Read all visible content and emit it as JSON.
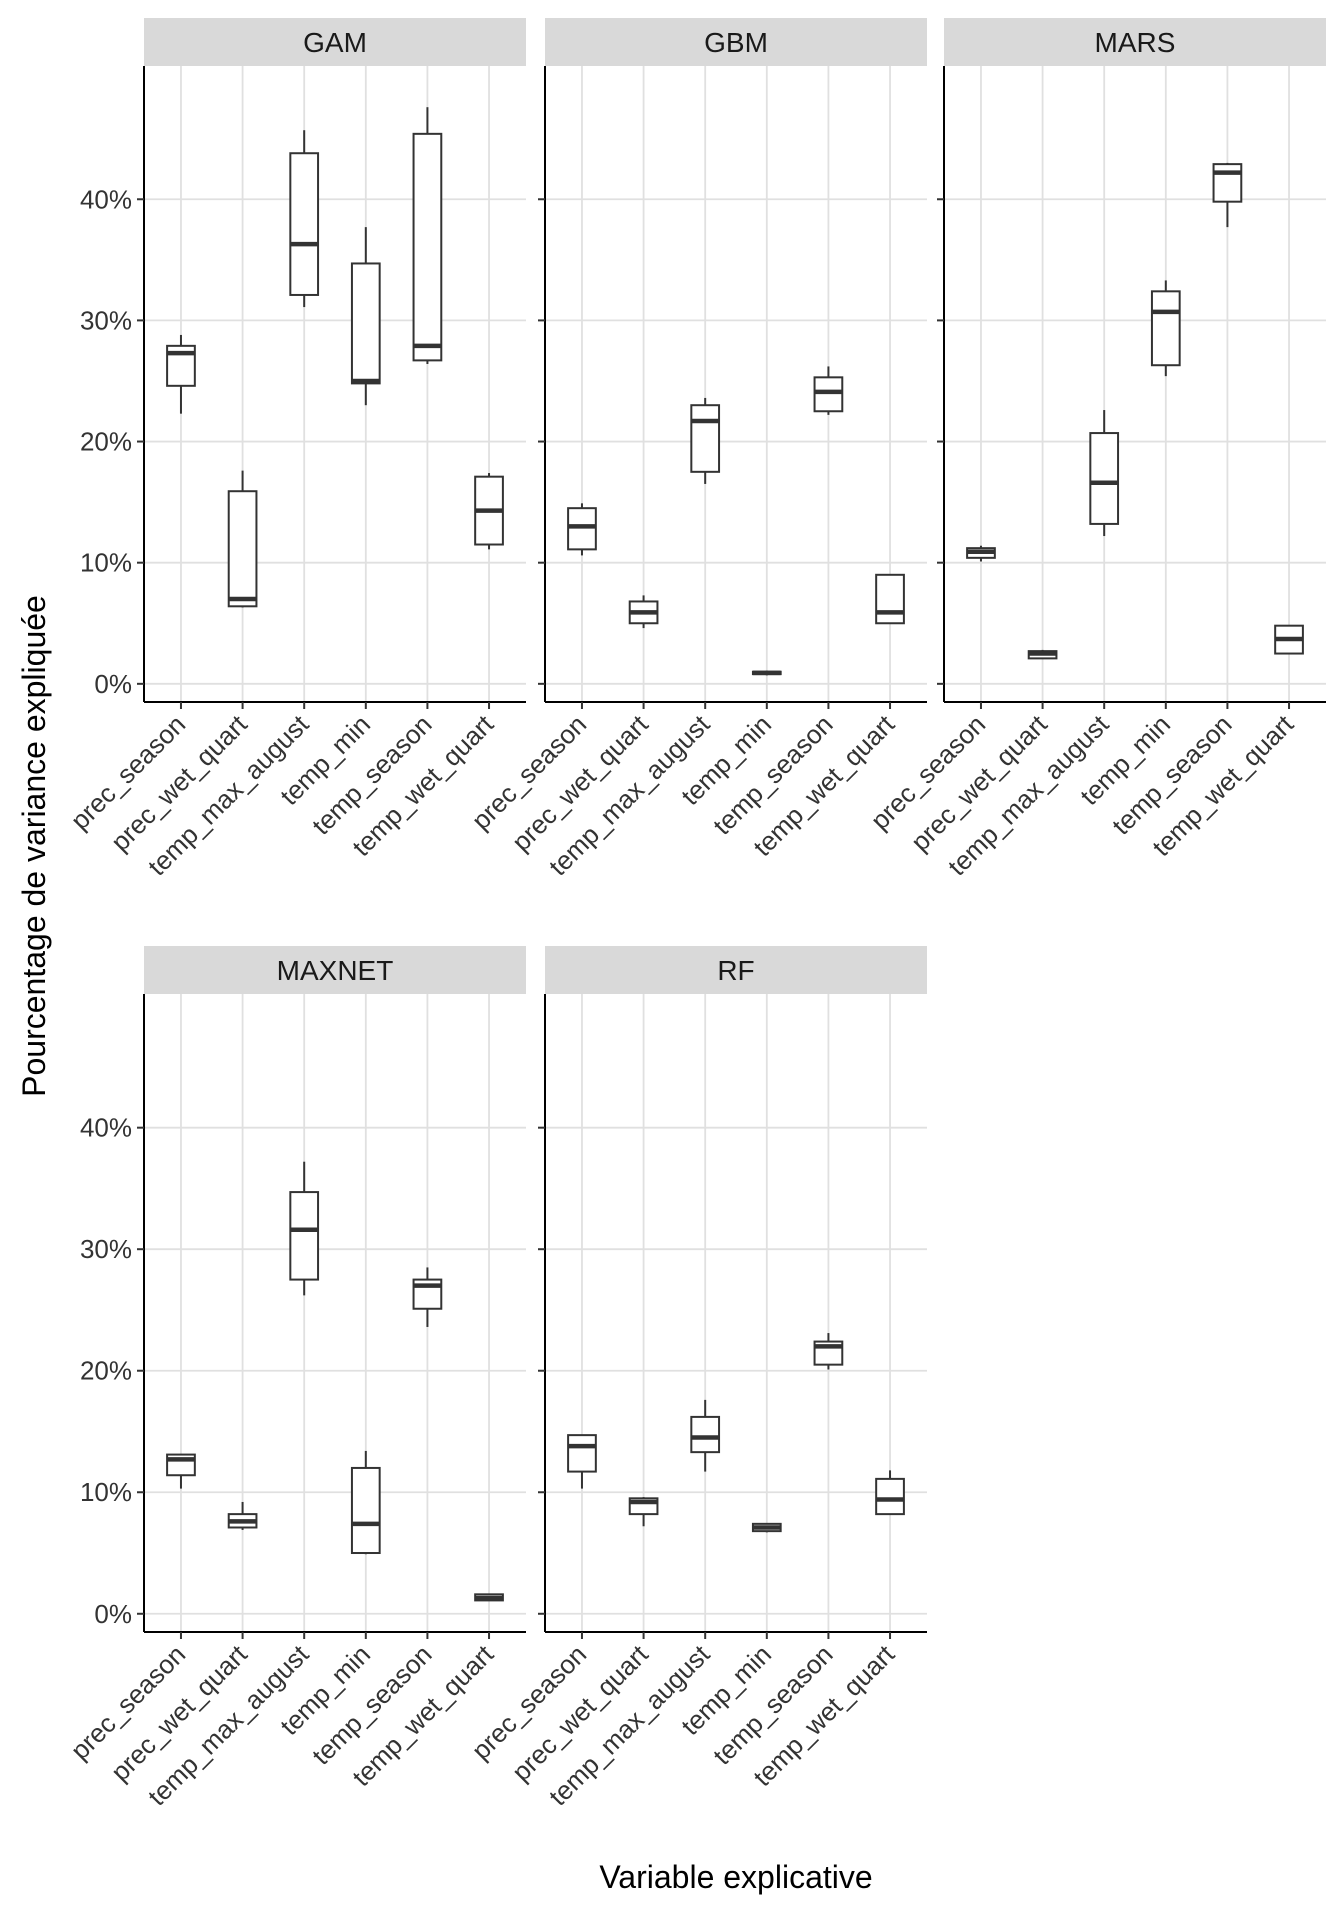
{
  "chart_data": {
    "type": "boxplot",
    "xlabel": "Variable explicative",
    "ylabel": "Pourcentage de variance expliquée",
    "y_unit": "%",
    "ylim": [
      -1.5,
      51
    ],
    "yticks": [
      0,
      10,
      20,
      30,
      40
    ],
    "ytick_labels": [
      "0%",
      "10%",
      "20%",
      "30%",
      "40%"
    ],
    "categories": [
      "prec_season",
      "prec_wet_quart",
      "temp_max_august",
      "temp_min",
      "temp_season",
      "temp_wet_quart"
    ],
    "panels": [
      {
        "name": "GAM",
        "boxes": [
          {
            "variable": "prec_season",
            "whisker_low": 22.3,
            "q1": 24.6,
            "median": 27.3,
            "q3": 27.9,
            "whisker_high": 28.8
          },
          {
            "variable": "prec_wet_quart",
            "whisker_low": 6.3,
            "q1": 6.4,
            "median": 7.0,
            "q3": 15.9,
            "whisker_high": 17.6
          },
          {
            "variable": "temp_max_august",
            "whisker_low": 31.1,
            "q1": 32.1,
            "median": 36.3,
            "q3": 43.8,
            "whisker_high": 45.7
          },
          {
            "variable": "temp_min",
            "whisker_low": 23.0,
            "q1": 24.8,
            "median": 25.0,
            "q3": 34.7,
            "whisker_high": 37.7
          },
          {
            "variable": "temp_season",
            "whisker_low": 26.4,
            "q1": 26.7,
            "median": 27.9,
            "q3": 45.4,
            "whisker_high": 47.6
          },
          {
            "variable": "temp_wet_quart",
            "whisker_low": 11.1,
            "q1": 11.5,
            "median": 14.3,
            "q3": 17.1,
            "whisker_high": 17.4
          }
        ]
      },
      {
        "name": "GBM",
        "boxes": [
          {
            "variable": "prec_season",
            "whisker_low": 10.6,
            "q1": 11.1,
            "median": 13.0,
            "q3": 14.5,
            "whisker_high": 14.9
          },
          {
            "variable": "prec_wet_quart",
            "whisker_low": 4.6,
            "q1": 5.0,
            "median": 5.9,
            "q3": 6.8,
            "whisker_high": 7.3
          },
          {
            "variable": "temp_max_august",
            "whisker_low": 16.5,
            "q1": 17.5,
            "median": 21.7,
            "q3": 23.0,
            "whisker_high": 23.6
          },
          {
            "variable": "temp_min",
            "whisker_low": 0.7,
            "q1": 0.8,
            "median": 0.9,
            "q3": 1.0,
            "whisker_high": 1.1
          },
          {
            "variable": "temp_season",
            "whisker_low": 22.2,
            "q1": 22.5,
            "median": 24.1,
            "q3": 25.3,
            "whisker_high": 26.2
          },
          {
            "variable": "temp_wet_quart",
            "whisker_low": 5.0,
            "q1": 5.0,
            "median": 5.9,
            "q3": 9.0,
            "whisker_high": 9.0
          }
        ]
      },
      {
        "name": "MARS",
        "boxes": [
          {
            "variable": "prec_season",
            "whisker_low": 10.1,
            "q1": 10.4,
            "median": 10.9,
            "q3": 11.2,
            "whisker_high": 11.4
          },
          {
            "variable": "prec_wet_quart",
            "whisker_low": 2.1,
            "q1": 2.1,
            "median": 2.5,
            "q3": 2.7,
            "whisker_high": 2.8
          },
          {
            "variable": "temp_max_august",
            "whisker_low": 12.2,
            "q1": 13.2,
            "median": 16.6,
            "q3": 20.7,
            "whisker_high": 22.6
          },
          {
            "variable": "temp_min",
            "whisker_low": 25.4,
            "q1": 26.3,
            "median": 30.7,
            "q3": 32.4,
            "whisker_high": 33.3
          },
          {
            "variable": "temp_season",
            "whisker_low": 37.7,
            "q1": 39.8,
            "median": 42.2,
            "q3": 42.9,
            "whisker_high": 43.0
          },
          {
            "variable": "temp_wet_quart",
            "whisker_low": 2.5,
            "q1": 2.5,
            "median": 3.7,
            "q3": 4.8,
            "whisker_high": 4.8
          }
        ]
      },
      {
        "name": "MAXNET",
        "boxes": [
          {
            "variable": "prec_season",
            "whisker_low": 10.3,
            "q1": 11.4,
            "median": 12.7,
            "q3": 13.1,
            "whisker_high": 13.1
          },
          {
            "variable": "prec_wet_quart",
            "whisker_low": 6.9,
            "q1": 7.1,
            "median": 7.6,
            "q3": 8.2,
            "whisker_high": 9.2
          },
          {
            "variable": "temp_max_august",
            "whisker_low": 26.2,
            "q1": 27.5,
            "median": 31.6,
            "q3": 34.7,
            "whisker_high": 37.2
          },
          {
            "variable": "temp_min",
            "whisker_low": 4.9,
            "q1": 5.0,
            "median": 7.4,
            "q3": 12.0,
            "whisker_high": 13.4
          },
          {
            "variable": "temp_season",
            "whisker_low": 23.6,
            "q1": 25.1,
            "median": 27.0,
            "q3": 27.5,
            "whisker_high": 28.5
          },
          {
            "variable": "temp_wet_quart",
            "whisker_low": 1.1,
            "q1": 1.1,
            "median": 1.3,
            "q3": 1.6,
            "whisker_high": 1.6
          }
        ]
      },
      {
        "name": "RF",
        "boxes": [
          {
            "variable": "prec_season",
            "whisker_low": 10.3,
            "q1": 11.7,
            "median": 13.8,
            "q3": 14.7,
            "whisker_high": 14.7
          },
          {
            "variable": "prec_wet_quart",
            "whisker_low": 7.2,
            "q1": 8.2,
            "median": 9.2,
            "q3": 9.5,
            "whisker_high": 9.6
          },
          {
            "variable": "temp_max_august",
            "whisker_low": 11.7,
            "q1": 13.3,
            "median": 14.5,
            "q3": 16.2,
            "whisker_high": 17.6
          },
          {
            "variable": "temp_min",
            "whisker_low": 6.7,
            "q1": 6.8,
            "median": 7.1,
            "q3": 7.4,
            "whisker_high": 7.4
          },
          {
            "variable": "temp_season",
            "whisker_low": 20.1,
            "q1": 20.5,
            "median": 22.0,
            "q3": 22.4,
            "whisker_high": 23.1
          },
          {
            "variable": "temp_wet_quart",
            "whisker_low": 8.2,
            "q1": 8.2,
            "median": 9.4,
            "q3": 11.1,
            "whisker_high": 11.8
          }
        ]
      }
    ]
  }
}
